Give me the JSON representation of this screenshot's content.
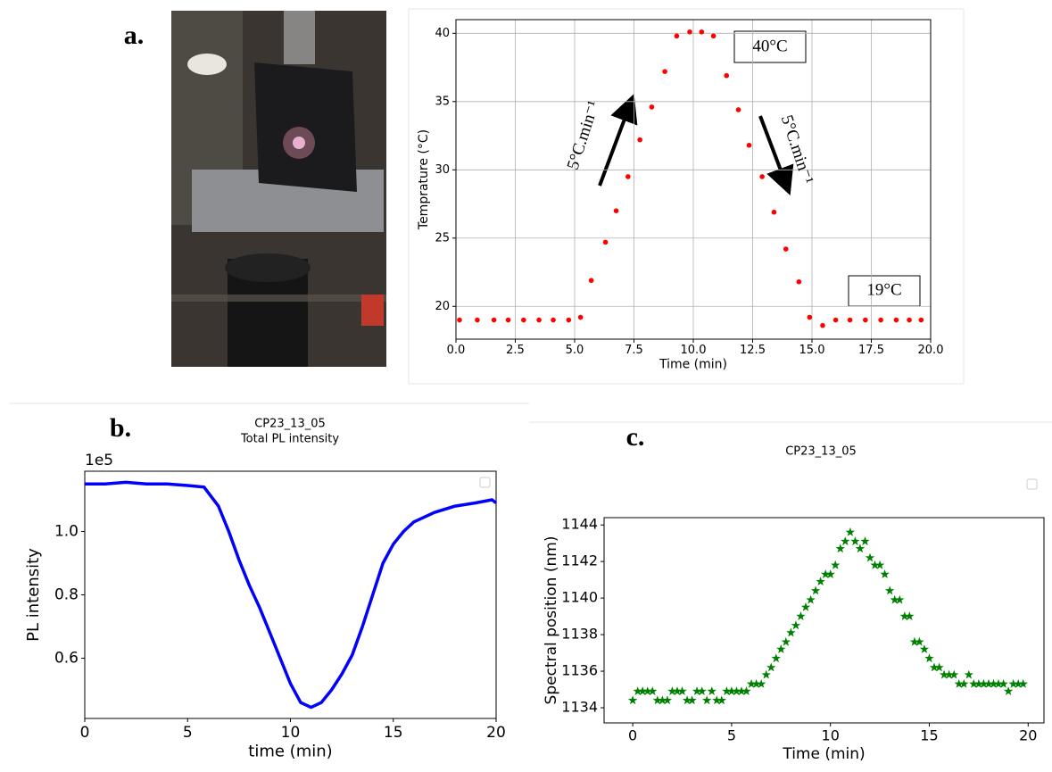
{
  "chart_data": [
    {
      "type": "scatter",
      "panel": "a.",
      "marker": "dot",
      "color": "#ff0000",
      "x_label": "Time (min)",
      "y_label": "Temprature (°C)",
      "annotations": [
        "40°C",
        "19°C",
        "5°C.min⁻¹",
        "5°C.min⁻¹"
      ],
      "x": [
        0.15,
        0.9,
        1.6,
        2.2,
        2.85,
        3.5,
        4.1,
        4.75,
        5.25,
        5.7,
        6.3,
        6.75,
        7.25,
        7.75,
        8.25,
        8.8,
        9.3,
        9.85,
        10.35,
        10.85,
        11.4,
        11.9,
        12.35,
        12.9,
        13.4,
        13.9,
        14.45,
        14.9,
        15.45,
        16.0,
        16.6,
        17.25,
        17.9,
        18.55,
        19.1,
        19.6
      ],
      "values": [
        19,
        19,
        19,
        19,
        19,
        19,
        19,
        19,
        19.2,
        21.9,
        24.7,
        27,
        29.5,
        32.2,
        34.6,
        37.2,
        39.8,
        40.1,
        40.1,
        39.8,
        36.9,
        34.4,
        31.8,
        29.5,
        26.9,
        24.2,
        21.8,
        19.2,
        18.6,
        19,
        19,
        19,
        19,
        19,
        19,
        19
      ],
      "xlim": [
        0,
        20
      ],
      "ylim": [
        17.6,
        41
      ],
      "xticks": [
        {
          "value": 0,
          "label": "0.0"
        },
        {
          "value": 2.5,
          "label": "2.5"
        },
        {
          "value": 5,
          "label": "5.0"
        },
        {
          "value": 7.5,
          "label": "7.5"
        },
        {
          "value": 10,
          "label": "10.0"
        },
        {
          "value": 12.5,
          "label": "12.5"
        },
        {
          "value": 15,
          "label": "15.0"
        },
        {
          "value": 17.5,
          "label": "17.5"
        },
        {
          "value": 20,
          "label": "20.0"
        }
      ],
      "yticks": [
        20,
        25,
        30,
        35,
        40
      ],
      "grid": true
    },
    {
      "type": "line",
      "panel": "b.",
      "title": "CP23_13_05",
      "subtitle": "Total PL intensity",
      "y_offset_label": "1e5",
      "color": "#0000ff",
      "x_label": "time (min)",
      "y_label": "PL intensity",
      "x": [
        0,
        1,
        2,
        3,
        4,
        5,
        5.8,
        6.5,
        7,
        7.5,
        8,
        8.5,
        9,
        9.5,
        10,
        10.5,
        11,
        11.5,
        12,
        12.5,
        13,
        13.5,
        14,
        14.5,
        15,
        15.5,
        16,
        17,
        18,
        19,
        19.8,
        20
      ],
      "values": [
        1.15,
        1.15,
        1.155,
        1.15,
        1.15,
        1.145,
        1.14,
        1.08,
        1.0,
        0.91,
        0.83,
        0.76,
        0.68,
        0.6,
        0.52,
        0.46,
        0.445,
        0.46,
        0.5,
        0.55,
        0.61,
        0.7,
        0.8,
        0.9,
        0.96,
        1.0,
        1.03,
        1.06,
        1.08,
        1.09,
        1.1,
        1.09
      ],
      "xlim": [
        0,
        20
      ],
      "ylim": [
        0.41,
        1.19
      ],
      "xticks": [
        0,
        5,
        10,
        15,
        20
      ],
      "yticks": [
        0.6,
        0.8,
        {
          "value": 1.0,
          "label": "1.0"
        }
      ],
      "grid": false
    },
    {
      "type": "scatter",
      "panel": "c.",
      "title": "CP23_13_05",
      "marker": "star",
      "color": "#008000",
      "x_label": "Time (min)",
      "y_label": "Spectral position (nm)",
      "x": [
        0,
        0.25,
        0.5,
        0.75,
        1,
        1.25,
        1.5,
        1.75,
        2,
        2.25,
        2.5,
        2.75,
        3,
        3.25,
        3.5,
        3.75,
        4,
        4.25,
        4.5,
        4.75,
        5,
        5.25,
        5.5,
        5.75,
        6,
        6.25,
        6.5,
        6.75,
        7,
        7.25,
        7.5,
        7.75,
        8,
        8.25,
        8.5,
        8.75,
        9,
        9.25,
        9.5,
        9.75,
        10,
        10.25,
        10.5,
        10.75,
        11,
        11.25,
        11.5,
        11.75,
        12,
        12.25,
        12.5,
        12.75,
        13,
        13.25,
        13.5,
        13.75,
        14,
        14.25,
        14.5,
        14.75,
        15,
        15.25,
        15.5,
        15.75,
        16,
        16.25,
        16.5,
        16.75,
        17,
        17.25,
        17.5,
        17.75,
        18,
        18.25,
        18.5,
        18.75,
        19,
        19.25,
        19.5,
        19.75
      ],
      "values": [
        1134.4,
        1134.9,
        1134.9,
        1134.9,
        1134.9,
        1134.4,
        1134.4,
        1134.4,
        1134.9,
        1134.9,
        1134.9,
        1134.4,
        1134.4,
        1134.9,
        1134.9,
        1134.4,
        1134.9,
        1134.4,
        1134.4,
        1134.9,
        1134.9,
        1134.9,
        1134.9,
        1134.9,
        1135.3,
        1135.3,
        1135.3,
        1135.8,
        1136.2,
        1136.7,
        1137.2,
        1137.6,
        1138.1,
        1138.5,
        1139.0,
        1139.5,
        1139.9,
        1140.4,
        1140.9,
        1141.3,
        1141.3,
        1141.8,
        1142.7,
        1143.1,
        1143.6,
        1143.1,
        1142.7,
        1143.1,
        1142.2,
        1141.8,
        1141.8,
        1141.3,
        1140.4,
        1139.9,
        1139.9,
        1139.0,
        1139.0,
        1137.6,
        1137.6,
        1137.2,
        1136.7,
        1136.2,
        1136.2,
        1135.8,
        1135.8,
        1135.8,
        1135.3,
        1135.3,
        1135.8,
        1135.3,
        1135.3,
        1135.3,
        1135.3,
        1135.3,
        1135.3,
        1135.3,
        1134.9,
        1135.3,
        1135.3,
        1135.3
      ],
      "xlim": [
        -1.45,
        20.8
      ],
      "ylim": [
        1133.17,
        1144.4
      ],
      "xticks": [
        0,
        5,
        10,
        15,
        20
      ],
      "yticks": [
        1134,
        1136,
        1138,
        1140,
        1142,
        1144
      ],
      "grid": false
    }
  ]
}
